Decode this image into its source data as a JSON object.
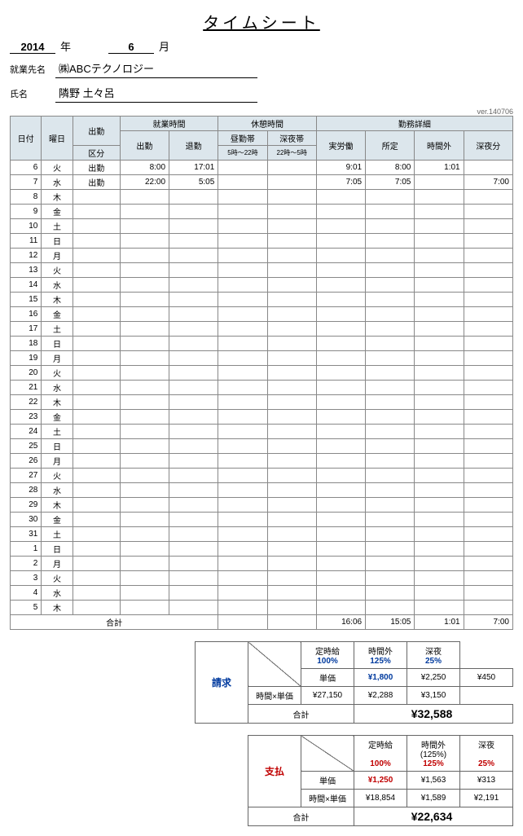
{
  "title": "タイムシート",
  "year": "2014",
  "year_suffix": "年",
  "month": "6",
  "month_suffix": "月",
  "company_label": "就業先名",
  "company": "㈱ABCテクノロジー",
  "name_label": "氏名",
  "name": "隣野 土々呂",
  "version": "ver.140706",
  "headers": {
    "date": "日付",
    "dow": "曜日",
    "attend": "出勤",
    "kubun": "区分",
    "work_time": "就業時間",
    "in": "出勤",
    "out": "退勤",
    "break": "休憩時間",
    "day_band": "昼勤帯",
    "day_band_sub": "5時～22時",
    "night_band": "深夜帯",
    "night_band_sub": "22時～5時",
    "detail": "勤務詳細",
    "actual": "実労働",
    "sched": "所定",
    "ot": "時間外",
    "night": "深夜分"
  },
  "rows": [
    {
      "d": "6",
      "w": "火",
      "k": "出勤",
      "in": "8:00",
      "out": "17:01",
      "db": "",
      "nb": "",
      "act": "9:01",
      "sch": "8:00",
      "ot": "1:01",
      "ng": ""
    },
    {
      "d": "7",
      "w": "水",
      "k": "出勤",
      "in": "22:00",
      "out": "5:05",
      "db": "",
      "nb": "",
      "act": "7:05",
      "sch": "7:05",
      "ot": "",
      "ng": "7:00"
    },
    {
      "d": "8",
      "w": "木",
      "k": "",
      "in": "",
      "out": "",
      "db": "",
      "nb": "",
      "act": "",
      "sch": "",
      "ot": "",
      "ng": ""
    },
    {
      "d": "9",
      "w": "金",
      "k": "",
      "in": "",
      "out": "",
      "db": "",
      "nb": "",
      "act": "",
      "sch": "",
      "ot": "",
      "ng": ""
    },
    {
      "d": "10",
      "w": "土",
      "k": "",
      "in": "",
      "out": "",
      "db": "",
      "nb": "",
      "act": "",
      "sch": "",
      "ot": "",
      "ng": ""
    },
    {
      "d": "11",
      "w": "日",
      "k": "",
      "in": "",
      "out": "",
      "db": "",
      "nb": "",
      "act": "",
      "sch": "",
      "ot": "",
      "ng": ""
    },
    {
      "d": "12",
      "w": "月",
      "k": "",
      "in": "",
      "out": "",
      "db": "",
      "nb": "",
      "act": "",
      "sch": "",
      "ot": "",
      "ng": ""
    },
    {
      "d": "13",
      "w": "火",
      "k": "",
      "in": "",
      "out": "",
      "db": "",
      "nb": "",
      "act": "",
      "sch": "",
      "ot": "",
      "ng": ""
    },
    {
      "d": "14",
      "w": "水",
      "k": "",
      "in": "",
      "out": "",
      "db": "",
      "nb": "",
      "act": "",
      "sch": "",
      "ot": "",
      "ng": ""
    },
    {
      "d": "15",
      "w": "木",
      "k": "",
      "in": "",
      "out": "",
      "db": "",
      "nb": "",
      "act": "",
      "sch": "",
      "ot": "",
      "ng": ""
    },
    {
      "d": "16",
      "w": "金",
      "k": "",
      "in": "",
      "out": "",
      "db": "",
      "nb": "",
      "act": "",
      "sch": "",
      "ot": "",
      "ng": ""
    },
    {
      "d": "17",
      "w": "土",
      "k": "",
      "in": "",
      "out": "",
      "db": "",
      "nb": "",
      "act": "",
      "sch": "",
      "ot": "",
      "ng": ""
    },
    {
      "d": "18",
      "w": "日",
      "k": "",
      "in": "",
      "out": "",
      "db": "",
      "nb": "",
      "act": "",
      "sch": "",
      "ot": "",
      "ng": ""
    },
    {
      "d": "19",
      "w": "月",
      "k": "",
      "in": "",
      "out": "",
      "db": "",
      "nb": "",
      "act": "",
      "sch": "",
      "ot": "",
      "ng": ""
    },
    {
      "d": "20",
      "w": "火",
      "k": "",
      "in": "",
      "out": "",
      "db": "",
      "nb": "",
      "act": "",
      "sch": "",
      "ot": "",
      "ng": ""
    },
    {
      "d": "21",
      "w": "水",
      "k": "",
      "in": "",
      "out": "",
      "db": "",
      "nb": "",
      "act": "",
      "sch": "",
      "ot": "",
      "ng": ""
    },
    {
      "d": "22",
      "w": "木",
      "k": "",
      "in": "",
      "out": "",
      "db": "",
      "nb": "",
      "act": "",
      "sch": "",
      "ot": "",
      "ng": ""
    },
    {
      "d": "23",
      "w": "金",
      "k": "",
      "in": "",
      "out": "",
      "db": "",
      "nb": "",
      "act": "",
      "sch": "",
      "ot": "",
      "ng": ""
    },
    {
      "d": "24",
      "w": "土",
      "k": "",
      "in": "",
      "out": "",
      "db": "",
      "nb": "",
      "act": "",
      "sch": "",
      "ot": "",
      "ng": ""
    },
    {
      "d": "25",
      "w": "日",
      "k": "",
      "in": "",
      "out": "",
      "db": "",
      "nb": "",
      "act": "",
      "sch": "",
      "ot": "",
      "ng": ""
    },
    {
      "d": "26",
      "w": "月",
      "k": "",
      "in": "",
      "out": "",
      "db": "",
      "nb": "",
      "act": "",
      "sch": "",
      "ot": "",
      "ng": ""
    },
    {
      "d": "27",
      "w": "火",
      "k": "",
      "in": "",
      "out": "",
      "db": "",
      "nb": "",
      "act": "",
      "sch": "",
      "ot": "",
      "ng": ""
    },
    {
      "d": "28",
      "w": "水",
      "k": "",
      "in": "",
      "out": "",
      "db": "",
      "nb": "",
      "act": "",
      "sch": "",
      "ot": "",
      "ng": ""
    },
    {
      "d": "29",
      "w": "木",
      "k": "",
      "in": "",
      "out": "",
      "db": "",
      "nb": "",
      "act": "",
      "sch": "",
      "ot": "",
      "ng": ""
    },
    {
      "d": "30",
      "w": "金",
      "k": "",
      "in": "",
      "out": "",
      "db": "",
      "nb": "",
      "act": "",
      "sch": "",
      "ot": "",
      "ng": ""
    },
    {
      "d": "31",
      "w": "土",
      "k": "",
      "in": "",
      "out": "",
      "db": "",
      "nb": "",
      "act": "",
      "sch": "",
      "ot": "",
      "ng": ""
    },
    {
      "d": "1",
      "w": "日",
      "k": "",
      "in": "",
      "out": "",
      "db": "",
      "nb": "",
      "act": "",
      "sch": "",
      "ot": "",
      "ng": ""
    },
    {
      "d": "2",
      "w": "月",
      "k": "",
      "in": "",
      "out": "",
      "db": "",
      "nb": "",
      "act": "",
      "sch": "",
      "ot": "",
      "ng": ""
    },
    {
      "d": "3",
      "w": "火",
      "k": "",
      "in": "",
      "out": "",
      "db": "",
      "nb": "",
      "act": "",
      "sch": "",
      "ot": "",
      "ng": ""
    },
    {
      "d": "4",
      "w": "水",
      "k": "",
      "in": "",
      "out": "",
      "db": "",
      "nb": "",
      "act": "",
      "sch": "",
      "ot": "",
      "ng": ""
    },
    {
      "d": "5",
      "w": "木",
      "k": "",
      "in": "",
      "out": "",
      "db": "",
      "nb": "",
      "act": "",
      "sch": "",
      "ot": "",
      "ng": ""
    }
  ],
  "totals": {
    "label": "合計",
    "act": "16:06",
    "sch": "15:05",
    "ot": "1:01",
    "ng": "7:00"
  },
  "billing": {
    "side": "請求",
    "cols": {
      "hourly": "定時給",
      "hourly_pct": "100%",
      "ot": "時間外",
      "ot_pct": "125%",
      "night": "深夜",
      "night_pct": "25%"
    },
    "rate_label": "単価",
    "rate_hourly": "¥1,800",
    "rate_ot": "¥2,250",
    "rate_night": "¥450",
    "line_label": "時間×単価",
    "line_hourly": "¥27,150",
    "line_ot": "¥2,288",
    "line_night": "¥3,150",
    "total_label": "合計",
    "total": "¥32,588"
  },
  "payment": {
    "side": "支払",
    "cols": {
      "hourly": "定時給",
      "hourly_pct": "100%",
      "ot": "時間外",
      "ot_sub": "(125%)",
      "ot_pct": "125%",
      "night": "深夜",
      "night_pct": "25%"
    },
    "rate_label": "単価",
    "rate_hourly": "¥1,250",
    "rate_ot": "¥1,563",
    "rate_night": "¥313",
    "line_label": "時間×単価",
    "line_hourly": "¥18,854",
    "line_ot": "¥1,589",
    "line_night": "¥2,191",
    "total_label": "合計",
    "total": "¥22,634"
  }
}
